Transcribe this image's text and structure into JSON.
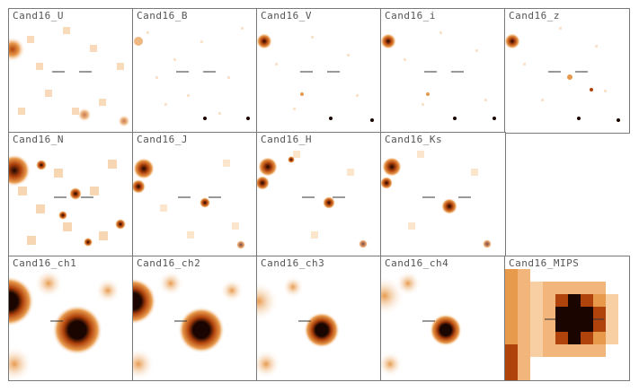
{
  "figure": {
    "rows": [
      [
        "Cand16_U",
        "Cand16_B",
        "Cand16_V",
        "Cand16_i",
        "Cand16_z"
      ],
      [
        "Cand16_N",
        "Cand16_J",
        "Cand16_H",
        "Cand16_Ks"
      ],
      [
        "Cand16_ch1",
        "Cand16_ch2",
        "Cand16_ch3",
        "Cand16_ch4",
        "Cand16_MIPS"
      ]
    ]
  },
  "colors": {
    "background": "#ffffff",
    "faint": "#fbe3c7",
    "mid": "#e89a4c",
    "strong": "#b0420c",
    "core": "#1a0500",
    "border": "#7a7a7a",
    "crosshair": "#333333",
    "label": "#555555"
  }
}
